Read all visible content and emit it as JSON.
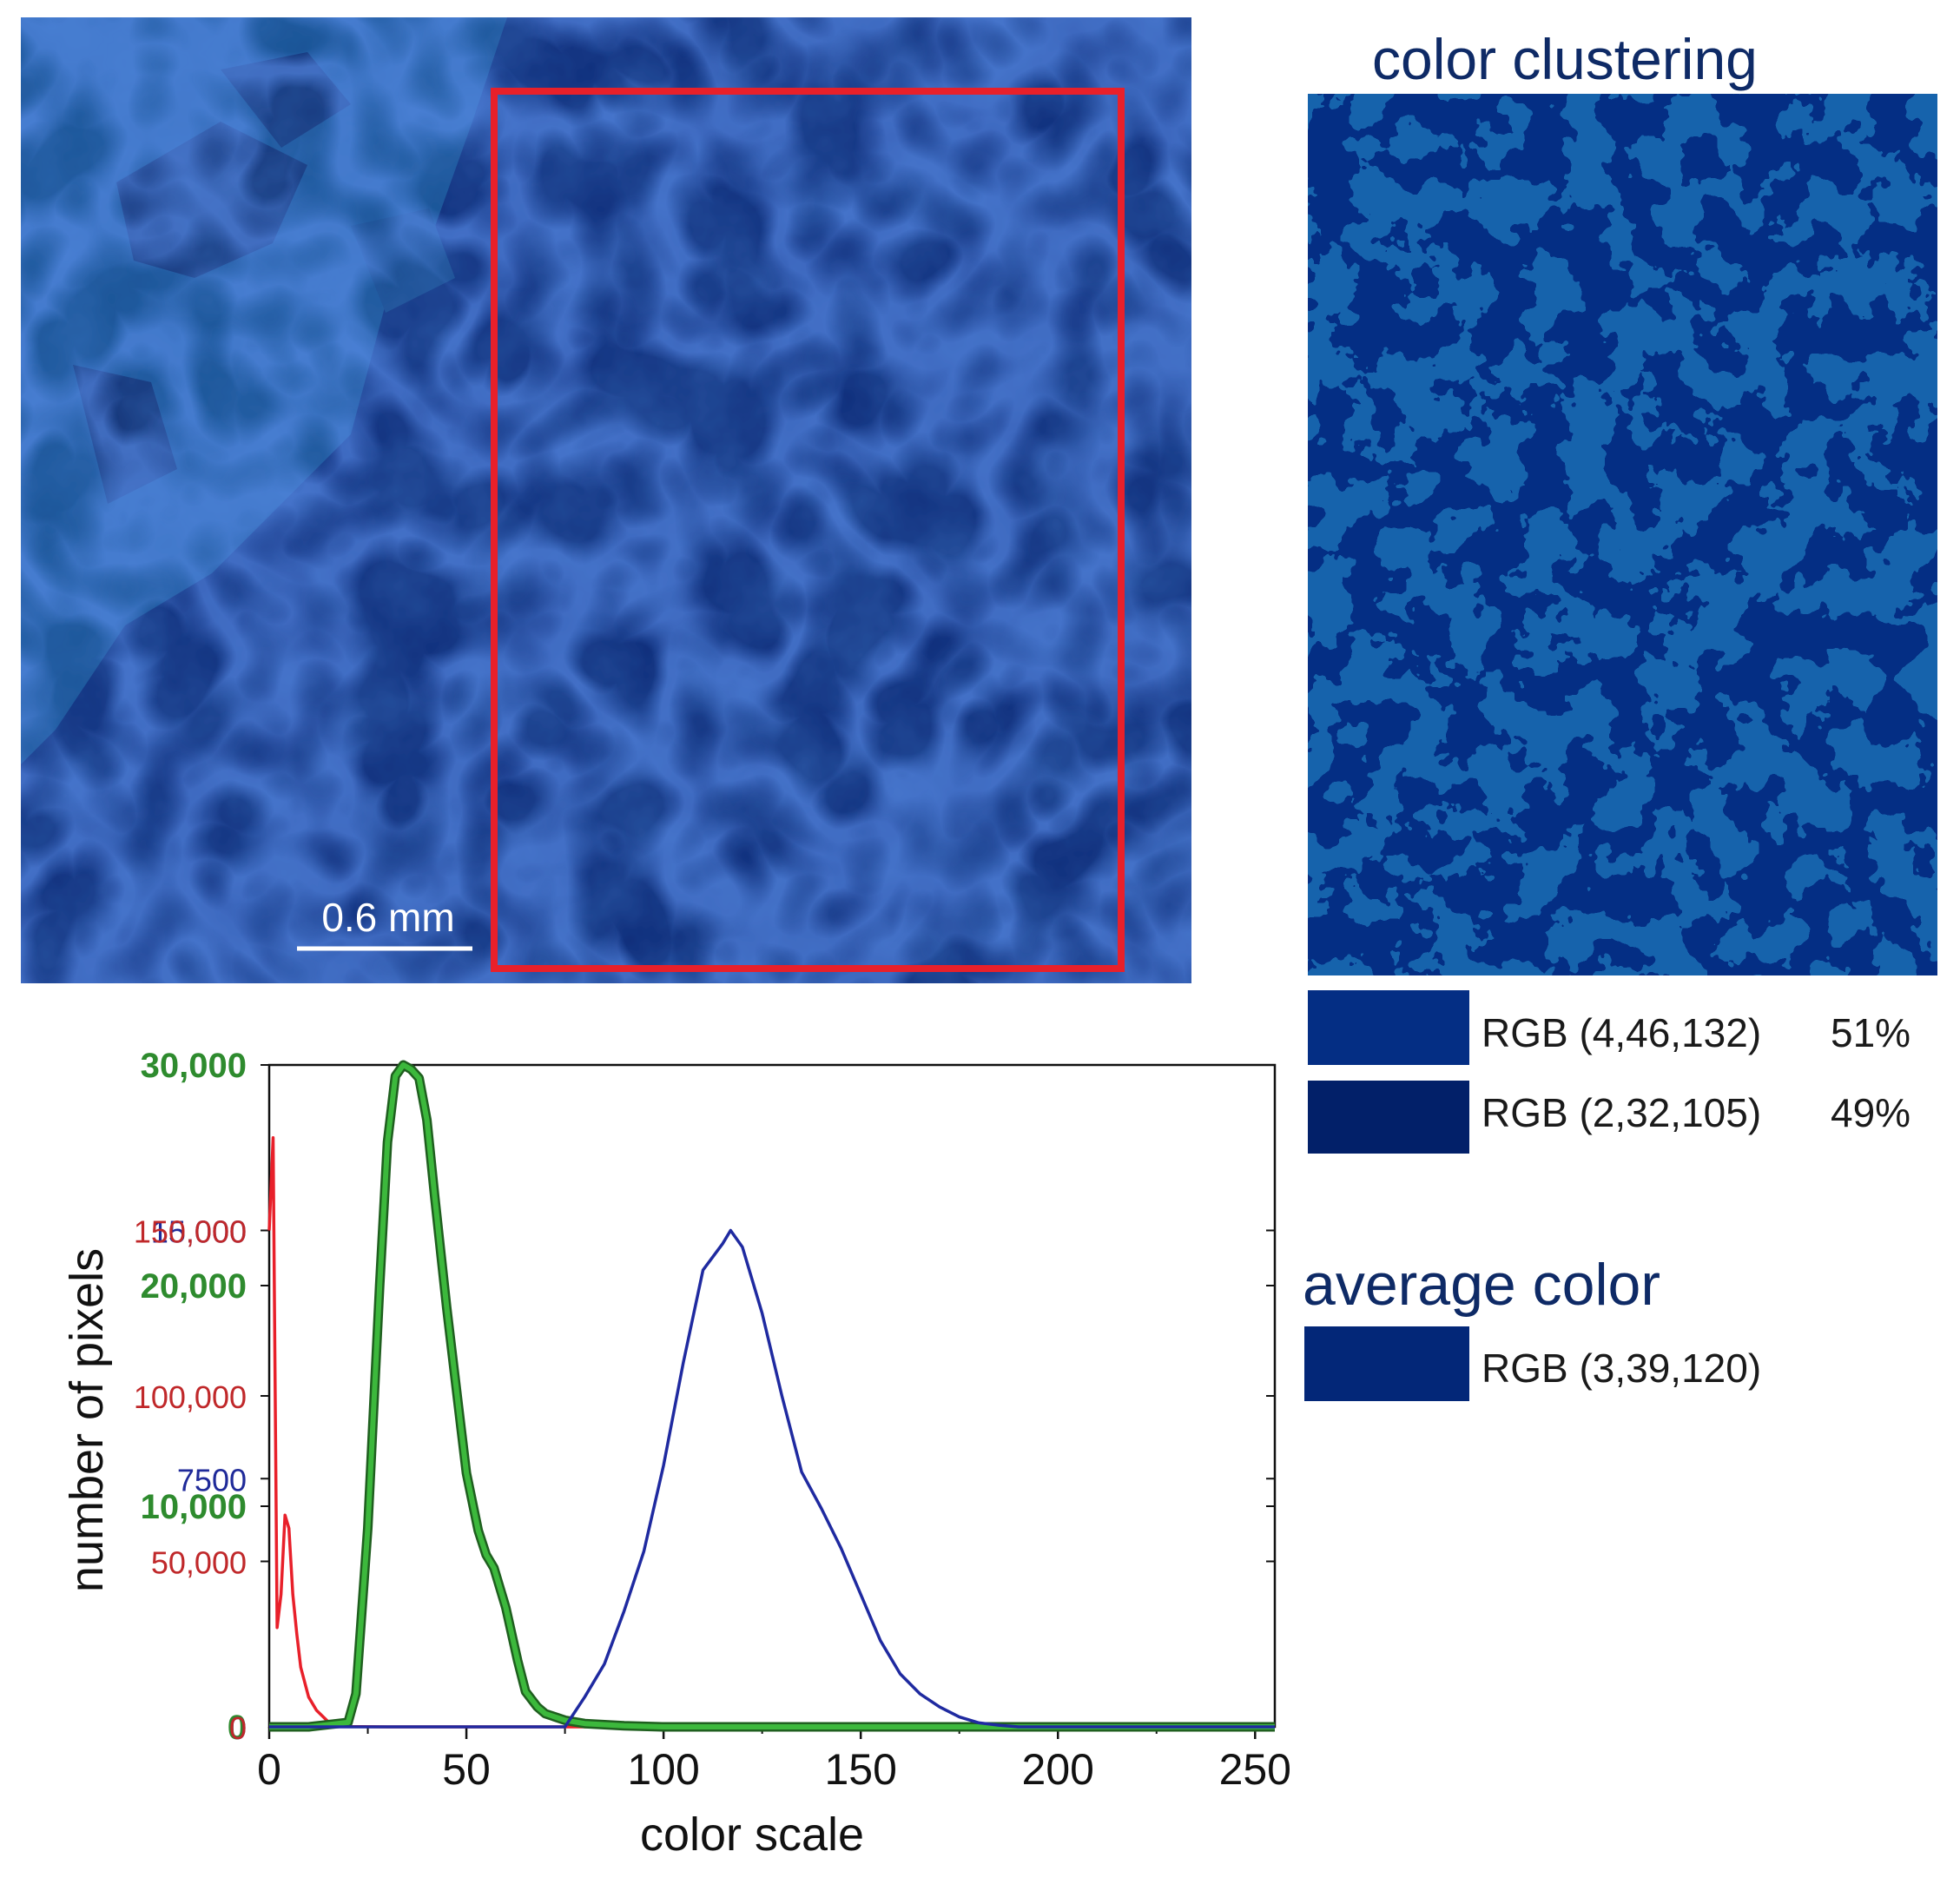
{
  "micrograph": {
    "scale_bar_label": "0.6 mm",
    "highlight_color": "#e8202a"
  },
  "clustering": {
    "title": "color clustering",
    "clusters": [
      {
        "label": "RGB (4,46,132)",
        "percent": "51%",
        "color": "#042e84"
      },
      {
        "label": "RGB (2,32,105)",
        "percent": "49%",
        "color": "#022069"
      }
    ]
  },
  "average": {
    "title": "average color",
    "label": "RGB (3,39,120)",
    "color": "#032778"
  },
  "chart_data": {
    "type": "line",
    "xlabel": "color scale",
    "ylabel": "number of pixels",
    "xlim": [
      0,
      255
    ],
    "x_ticks": [
      "0",
      "50",
      "100",
      "150",
      "200",
      "250"
    ],
    "y_axes": [
      {
        "series": "green",
        "color": "#2e8b2e",
        "ylim": [
          0,
          30000
        ],
        "ticks": [
          {
            "value": 0,
            "label": "0"
          },
          {
            "value": 10000,
            "label": "10,000"
          },
          {
            "value": 20000,
            "label": "20,000"
          },
          {
            "value": 30000,
            "label": "30,000"
          }
        ]
      },
      {
        "series": "blue",
        "color": "#1f2a99",
        "ylim": [
          0,
          20000
        ],
        "ticks": [
          {
            "value": 0,
            "label": "0"
          },
          {
            "value": 7500,
            "label": "7500"
          },
          {
            "value": 15000,
            "label": "15,000"
          }
        ]
      },
      {
        "series": "red",
        "color": "#c0282a",
        "ylim": [
          0,
          200000
        ],
        "ticks": [
          {
            "value": 0,
            "label": "0"
          },
          {
            "value": 50000,
            "label": "50,000"
          },
          {
            "value": 100000,
            "label": "100,000"
          },
          {
            "value": 150000,
            "label": "150,000"
          }
        ]
      }
    ],
    "series": [
      {
        "key": "red",
        "color": "#e8202a",
        "x": [
          0,
          1,
          2,
          3,
          4,
          5,
          6,
          7,
          8,
          10,
          12,
          15,
          18,
          20,
          30,
          60,
          100,
          150,
          200,
          255
        ],
        "y": [
          150000,
          178000,
          30000,
          40000,
          64000,
          60000,
          40000,
          28000,
          18000,
          9000,
          5000,
          1500,
          400,
          100,
          0,
          0,
          0,
          0,
          0,
          0
        ]
      },
      {
        "key": "green",
        "color": "#3cb83c",
        "x": [
          0,
          10,
          20,
          22,
          25,
          28,
          30,
          32,
          34,
          36,
          38,
          40,
          42,
          45,
          48,
          50,
          53,
          55,
          57,
          60,
          63,
          65,
          68,
          70,
          75,
          80,
          90,
          100,
          150,
          255
        ],
        "y": [
          0,
          0,
          200,
          1500,
          9000,
          20000,
          26500,
          29500,
          30000,
          29800,
          29400,
          27500,
          24000,
          19000,
          14500,
          11500,
          8900,
          7800,
          7200,
          5400,
          3000,
          1600,
          900,
          600,
          300,
          150,
          50,
          0,
          0,
          0
        ]
      },
      {
        "key": "blue",
        "color": "#1f2aa0",
        "x": [
          0,
          60,
          75,
          80,
          85,
          90,
          95,
          100,
          105,
          110,
          115,
          117,
          120,
          125,
          130,
          135,
          140,
          145,
          150,
          155,
          160,
          165,
          170,
          175,
          180,
          185,
          190,
          200,
          255
        ],
        "y": [
          0,
          0,
          0,
          900,
          1900,
          3500,
          5300,
          7900,
          11000,
          13800,
          14600,
          15000,
          14500,
          12500,
          10000,
          7700,
          6600,
          5400,
          4000,
          2600,
          1600,
          1000,
          600,
          300,
          120,
          50,
          0,
          0,
          0
        ]
      }
    ]
  }
}
